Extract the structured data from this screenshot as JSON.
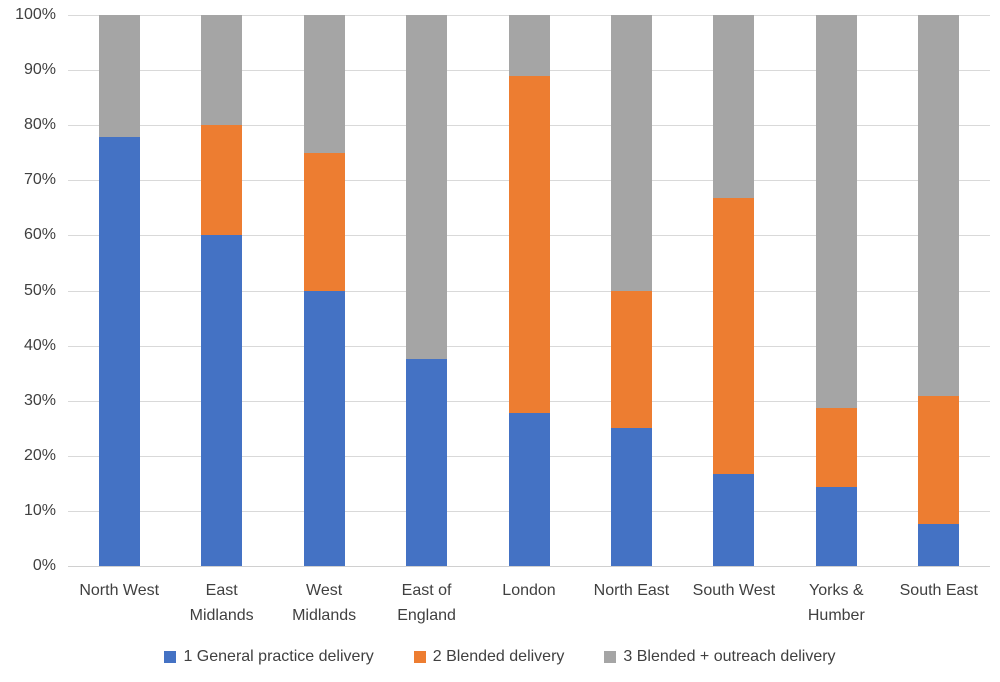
{
  "chart_data": {
    "type": "bar",
    "subtype": "stacked-100-percent-column",
    "title": "",
    "xlabel": "",
    "ylabel": "",
    "grid": true,
    "legend_position": "bottom",
    "y_axis": {
      "min": 0,
      "max": 100,
      "step": 10,
      "tick_labels": [
        "0%",
        "10%",
        "20%",
        "30%",
        "40%",
        "50%",
        "60%",
        "70%",
        "80%",
        "90%",
        "100%"
      ]
    },
    "categories": [
      "North West",
      "East Midlands",
      "West Midlands",
      "East of England",
      "London",
      "North East",
      "South West",
      "Yorks & Humber",
      "South East"
    ],
    "series": [
      {
        "name": "1 General practice delivery",
        "color": "#4472C4",
        "values": [
          77.8,
          60.0,
          50.0,
          37.5,
          27.8,
          25.0,
          16.7,
          14.3,
          7.7
        ]
      },
      {
        "name": "2 Blended delivery",
        "color": "#ED7D31",
        "values": [
          0.0,
          20.0,
          25.0,
          0.0,
          61.1,
          25.0,
          50.0,
          14.3,
          23.1
        ]
      },
      {
        "name": "3 Blended + outreach delivery",
        "color": "#A5A5A5",
        "values": [
          22.2,
          20.0,
          25.0,
          62.5,
          11.1,
          50.0,
          33.3,
          71.4,
          69.2
        ]
      }
    ]
  },
  "colors": {
    "gridline": "#D9D9D9",
    "axis_text": "#404040",
    "background": "#FFFFFF"
  }
}
